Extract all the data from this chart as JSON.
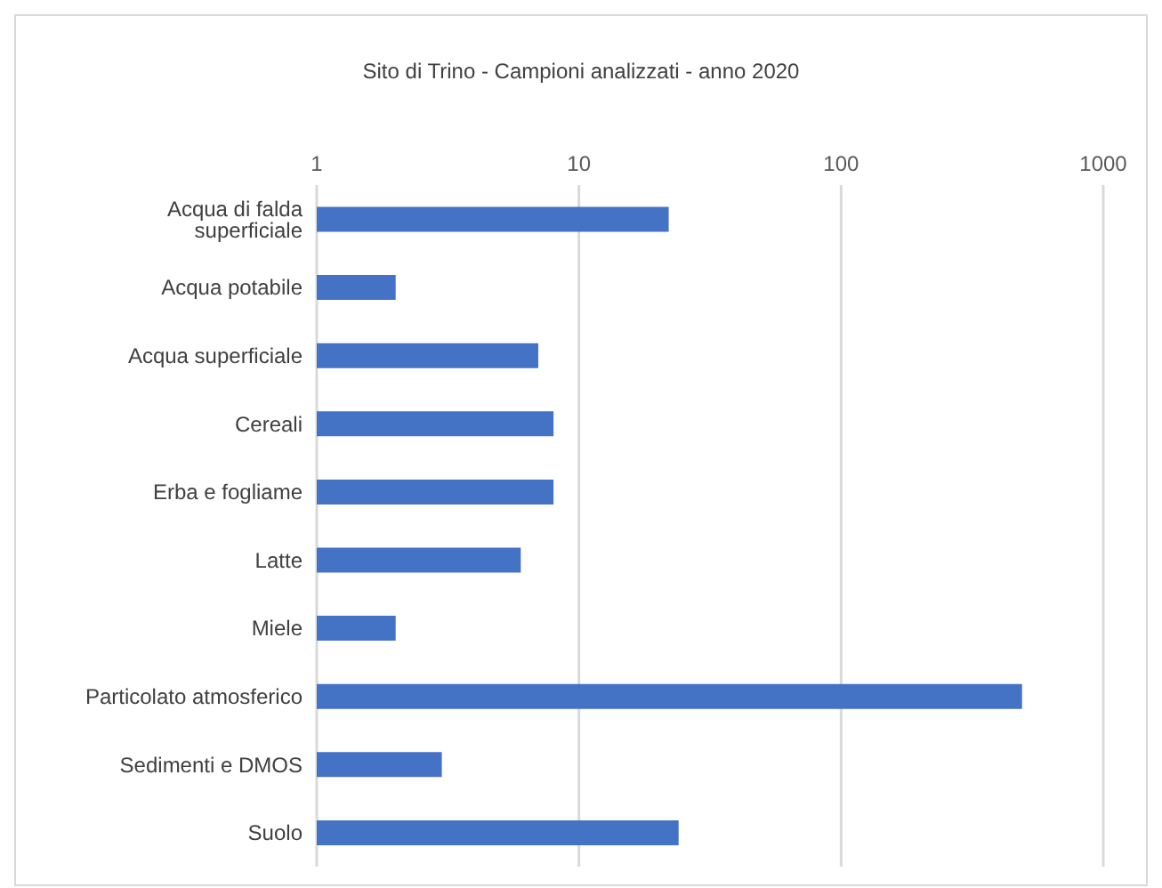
{
  "chart_data": {
    "type": "bar",
    "orientation": "horizontal",
    "title": "Sito di Trino - Campioni analizzati - anno 2020",
    "categories": [
      "Acqua di falda superficiale",
      "Acqua potabile",
      "Acqua superficiale",
      "Cereali",
      "Erba e fogliame",
      "Latte",
      "Miele",
      "Particolato atmosferico",
      "Sedimenti e DMOS",
      "Suolo"
    ],
    "values": [
      22,
      2,
      7,
      8,
      8,
      6,
      2,
      490,
      3,
      24
    ],
    "color": "#4472c4",
    "log": "x",
    "xlim": [
      1,
      1000
    ],
    "xticks": [
      1,
      10,
      100,
      1000
    ],
    "grid": "x"
  }
}
